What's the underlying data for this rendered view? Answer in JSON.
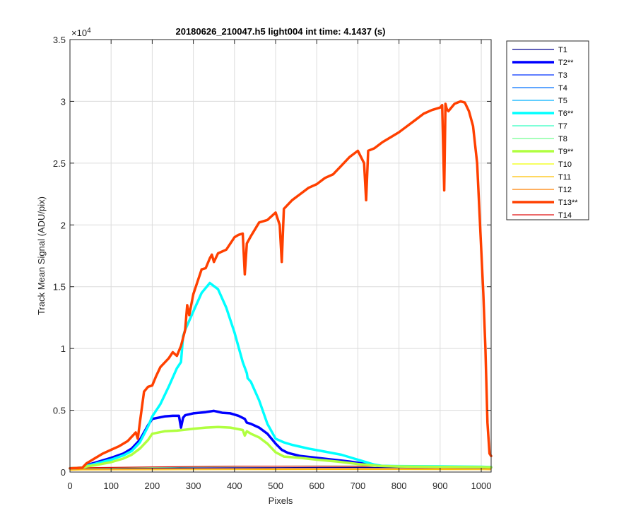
{
  "chart_data": {
    "type": "line",
    "title": "20180626_210047.h5  light004   int time: 4.1437 (s)",
    "xlabel": "Pixels",
    "ylabel": "Track Mean Signal (ADU/pix)",
    "y_exponent_label": "×10",
    "y_exponent_value": "4",
    "xlim": [
      0,
      1024
    ],
    "ylim": [
      0,
      35000
    ],
    "x_ticks": [
      0,
      100,
      200,
      300,
      400,
      500,
      600,
      700,
      800,
      900,
      1000
    ],
    "x_tick_labels": [
      "0",
      "100",
      "200",
      "300",
      "400",
      "500",
      "600",
      "700",
      "800",
      "900",
      "1000"
    ],
    "y_ticks": [
      0,
      5000,
      10000,
      15000,
      20000,
      25000,
      30000,
      35000
    ],
    "y_tick_labels": [
      "0",
      "0.5",
      "1",
      "1.5",
      "2",
      "2.5",
      "3",
      "3.5"
    ],
    "grid": true,
    "legend_position": "outside-top-right",
    "series": [
      {
        "name": "T1",
        "color": "#00008f",
        "highlight": false,
        "x": [
          0,
          30,
          200,
          400,
          500,
          600,
          700,
          800,
          900,
          1000,
          1024
        ],
        "y": [
          300,
          300,
          330,
          350,
          360,
          370,
          370,
          360,
          350,
          330,
          300
        ]
      },
      {
        "name": "T2**",
        "color": "#0000ff",
        "highlight": true,
        "x": [
          0,
          30,
          40,
          60,
          100,
          130,
          150,
          170,
          190,
          200,
          230,
          250,
          265,
          270,
          275,
          280,
          300,
          330,
          350,
          370,
          390,
          410,
          425,
          430,
          440,
          460,
          480,
          500,
          515,
          530,
          560,
          600,
          640,
          680,
          720,
          750,
          800,
          900,
          1000,
          1024
        ],
        "y": [
          300,
          350,
          550,
          750,
          1150,
          1500,
          1900,
          2600,
          3800,
          4300,
          4500,
          4550,
          4550,
          3600,
          4400,
          4600,
          4750,
          4850,
          4950,
          4800,
          4750,
          4550,
          4300,
          4000,
          3900,
          3600,
          3100,
          2300,
          1800,
          1550,
          1300,
          1150,
          1000,
          850,
          650,
          500,
          450,
          420,
          400,
          380
        ]
      },
      {
        "name": "T3",
        "color": "#0030ff",
        "highlight": false,
        "x": [],
        "y": []
      },
      {
        "name": "T4",
        "color": "#0070ff",
        "highlight": false,
        "x": [],
        "y": []
      },
      {
        "name": "T5",
        "color": "#00b0ff",
        "highlight": false,
        "x": [],
        "y": []
      },
      {
        "name": "T6**",
        "color": "#00ffff",
        "highlight": true,
        "x": [
          0,
          30,
          40,
          60,
          100,
          130,
          150,
          170,
          190,
          200,
          220,
          240,
          260,
          270,
          275,
          280,
          300,
          320,
          340,
          360,
          380,
          400,
          420,
          430,
          432,
          440,
          460,
          480,
          500,
          520,
          540,
          580,
          620,
          660,
          700,
          740,
          760,
          800,
          900,
          1000,
          1024
        ],
        "y": [
          300,
          350,
          500,
          650,
          1000,
          1350,
          1700,
          2400,
          3700,
          4500,
          5500,
          6900,
          8400,
          8900,
          11000,
          11500,
          13000,
          14500,
          15300,
          14800,
          13300,
          11300,
          8900,
          8000,
          7600,
          7300,
          5800,
          3900,
          2700,
          2400,
          2200,
          1900,
          1650,
          1400,
          1000,
          600,
          500,
          480,
          460,
          430,
          400
        ]
      },
      {
        "name": "T7",
        "color": "#30ffc0",
        "highlight": false,
        "x": [],
        "y": []
      },
      {
        "name": "T8",
        "color": "#70ff90",
        "highlight": false,
        "x": [
          0,
          30,
          200,
          400,
          500,
          600,
          700,
          800,
          900,
          1000,
          1024
        ],
        "y": [
          300,
          320,
          380,
          460,
          480,
          490,
          490,
          480,
          460,
          440,
          400
        ]
      },
      {
        "name": "T9**",
        "color": "#b0ff40",
        "highlight": true,
        "x": [
          0,
          30,
          40,
          60,
          100,
          130,
          150,
          170,
          190,
          200,
          230,
          260,
          300,
          330,
          360,
          390,
          420,
          425,
          430,
          440,
          460,
          480,
          500,
          520,
          560,
          600,
          650,
          700,
          750,
          800,
          900,
          1000,
          1024
        ],
        "y": [
          300,
          350,
          450,
          550,
          800,
          1100,
          1400,
          1900,
          2600,
          3100,
          3300,
          3350,
          3500,
          3600,
          3650,
          3600,
          3400,
          2950,
          3300,
          3100,
          2800,
          2300,
          1600,
          1250,
          1150,
          1000,
          850,
          650,
          500,
          450,
          420,
          400,
          380
        ]
      },
      {
        "name": "T10",
        "color": "#f0ff00",
        "highlight": false,
        "x": [],
        "y": []
      },
      {
        "name": "T11",
        "color": "#ffc000",
        "highlight": false,
        "x": [
          0,
          30,
          200,
          400,
          600,
          800,
          1000,
          1024
        ],
        "y": [
          150,
          170,
          180,
          190,
          200,
          200,
          190,
          180
        ]
      },
      {
        "name": "T12",
        "color": "#ff8000",
        "highlight": false,
        "x": [
          0,
          30,
          200,
          400,
          600,
          800,
          1000,
          1024
        ],
        "y": [
          220,
          240,
          260,
          270,
          280,
          280,
          270,
          250
        ]
      },
      {
        "name": "T13**",
        "color": "#ff4000",
        "highlight": true,
        "x": [
          0,
          30,
          40,
          60,
          80,
          100,
          120,
          140,
          160,
          165,
          170,
          180,
          190,
          200,
          210,
          220,
          240,
          250,
          260,
          270,
          280,
          285,
          290,
          300,
          320,
          330,
          340,
          345,
          350,
          360,
          380,
          400,
          410,
          420,
          425,
          430,
          440,
          460,
          480,
          500,
          510,
          515,
          520,
          540,
          560,
          580,
          600,
          620,
          640,
          660,
          680,
          700,
          715,
          720,
          725,
          740,
          760,
          780,
          800,
          820,
          840,
          860,
          880,
          900,
          905,
          910,
          913,
          916,
          920,
          935,
          950,
          960,
          970,
          980,
          990,
          1000,
          1005,
          1010,
          1015,
          1020,
          1024
        ],
        "y": [
          300,
          350,
          700,
          1100,
          1500,
          1800,
          2100,
          2500,
          3200,
          2700,
          4000,
          6500,
          6900,
          7000,
          7800,
          8500,
          9200,
          9700,
          9400,
          10200,
          11500,
          13500,
          12700,
          14400,
          16400,
          16500,
          17300,
          17600,
          17000,
          17700,
          18000,
          19000,
          19200,
          19300,
          16000,
          18500,
          19100,
          20200,
          20400,
          21000,
          20000,
          17000,
          21300,
          22000,
          22500,
          23000,
          23300,
          23800,
          24100,
          24800,
          25500,
          26000,
          25000,
          22000,
          26000,
          26200,
          26700,
          27100,
          27500,
          28000,
          28500,
          29000,
          29300,
          29500,
          29700,
          22800,
          29800,
          29400,
          29200,
          29800,
          30000,
          29900,
          29200,
          28000,
          25000,
          18000,
          14500,
          10000,
          4000,
          1500,
          1300
        ]
      },
      {
        "name": "T14",
        "color": "#e01010",
        "highlight": false,
        "x": [
          0,
          30,
          200,
          400,
          600,
          800,
          1000,
          1024
        ],
        "y": [
          320,
          350,
          420,
          480,
          480,
          450,
          420,
          380
        ]
      }
    ]
  }
}
